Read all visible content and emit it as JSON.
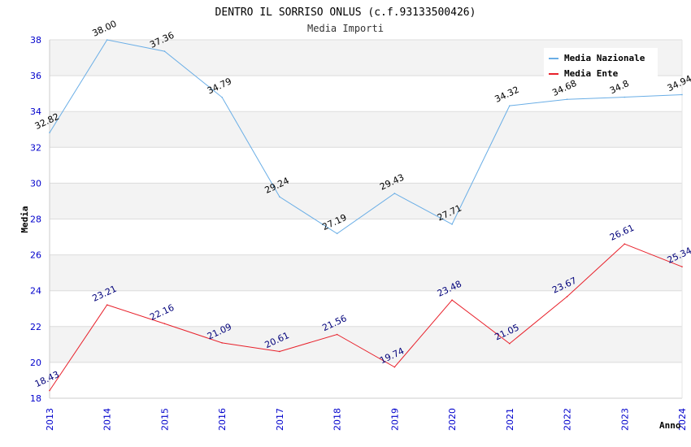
{
  "chart_data": {
    "type": "line",
    "title": "DENTRO IL SORRISO ONLUS (c.f.93133500426)",
    "subtitle": "Media Importi",
    "xlabel": "Anno",
    "ylabel": "Media",
    "x": [
      "2013",
      "2014",
      "2015",
      "2016",
      "2017",
      "2018",
      "2019",
      "2020",
      "2021",
      "2022",
      "2023",
      "2024"
    ],
    "ylim": [
      18,
      38
    ],
    "yticks": [
      18,
      20,
      22,
      24,
      26,
      28,
      30,
      32,
      34,
      36,
      38
    ],
    "grid": true,
    "legend_position": "top-right",
    "series": [
      {
        "name": "Media Nazionale",
        "color": "#6aaee6",
        "label_color": "#000000",
        "values": [
          32.82,
          38.0,
          37.36,
          34.79,
          29.24,
          27.19,
          29.43,
          27.71,
          34.32,
          34.68,
          34.8,
          34.94
        ],
        "labels": [
          "32.82",
          "38.00",
          "37.36",
          "34.79",
          "29.24",
          "27.19",
          "29.43",
          "27.71",
          "34.32",
          "34.68",
          "34.8",
          "34.94"
        ]
      },
      {
        "name": "Media Ente",
        "color": "#e8202a",
        "label_color": "#00007a",
        "values": [
          18.43,
          23.21,
          22.16,
          21.09,
          20.61,
          21.56,
          19.74,
          23.48,
          21.05,
          23.67,
          26.61,
          25.34
        ],
        "labels": [
          "18.43",
          "23.21",
          "22.16",
          "21.09",
          "20.61",
          "21.56",
          "19.74",
          "23.48",
          "21.05",
          "23.67",
          "26.61",
          "25.34"
        ]
      }
    ]
  }
}
